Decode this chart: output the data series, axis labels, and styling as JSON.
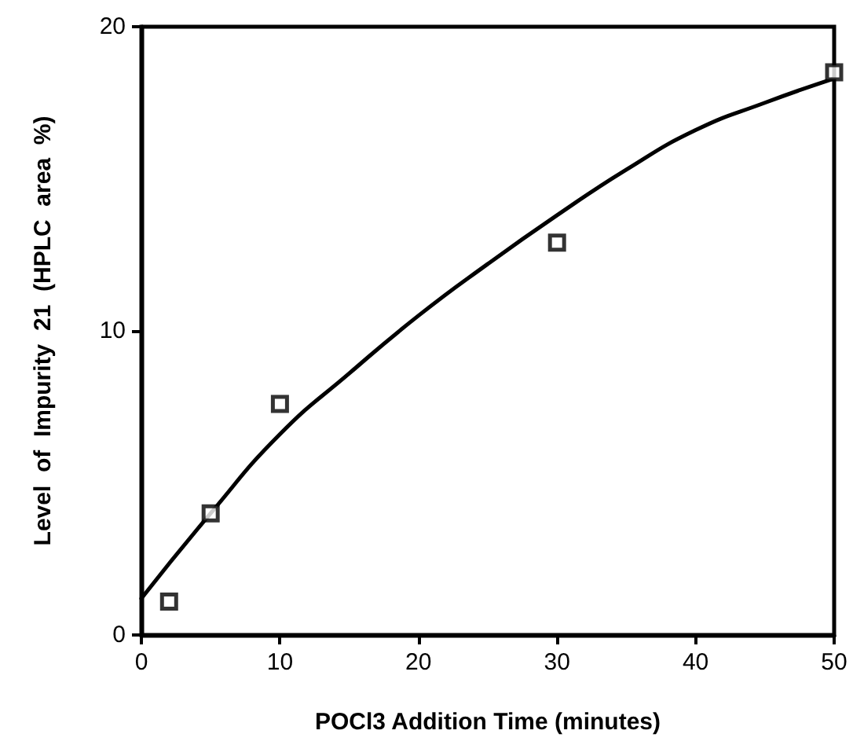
{
  "chart_data": {
    "type": "scatter",
    "xlabel": "POCl3 Addition Time (minutes)",
    "ylabel": "Level  of  Impurity  21  (HPLC  area  %)",
    "xlim": [
      0,
      50
    ],
    "xticks": [
      0,
      10,
      20,
      30,
      40,
      50
    ],
    "ylim": [
      0,
      20
    ],
    "yticks": [
      0,
      10,
      20
    ],
    "grid": false,
    "series": [
      {
        "color": "#000000",
        "marker": "square",
        "x": [
          2,
          5,
          10,
          30,
          50
        ],
        "values": [
          1.1,
          4.0,
          7.6,
          12.9,
          18.5
        ]
      },
      {
        "type": "line",
        "color": "#000000",
        "marker": "none",
        "line_style": "solid",
        "x": [
          0,
          5,
          10,
          15,
          20,
          25,
          30,
          35,
          40,
          45,
          50
        ],
        "values": [
          1.2,
          4.0,
          6.6,
          8.6,
          10.5,
          12.2,
          13.8,
          15.3,
          16.6,
          17.5,
          18.3
        ]
      }
    ]
  }
}
